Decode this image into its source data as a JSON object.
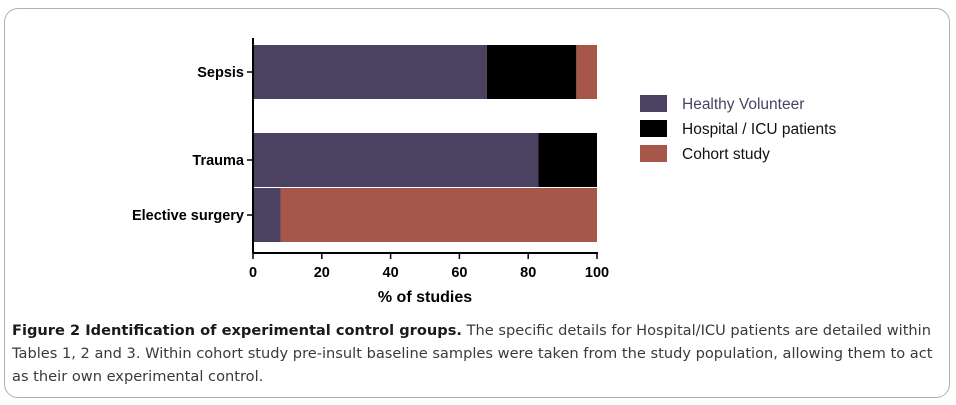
{
  "chart_data": {
    "type": "bar",
    "orientation": "horizontal",
    "stacked": true,
    "categories": [
      "Sepsis",
      "Trauma",
      "Elective surgery"
    ],
    "series": [
      {
        "name": "Healthy Volunteer",
        "color": "#4b4261",
        "values": [
          68,
          83,
          8
        ]
      },
      {
        "name": "Hospital / ICU patients",
        "color": "#000000",
        "values": [
          26,
          17,
          0
        ]
      },
      {
        "name": "Cohort study",
        "color": "#a6574a",
        "values": [
          6,
          0,
          92
        ]
      }
    ],
    "xlabel": "% of studies",
    "ylabel": "",
    "xlim": [
      0,
      100
    ],
    "xticks": [
      "0",
      "20",
      "40",
      "60",
      "80",
      "100"
    ],
    "grid": false,
    "legend_position": "right"
  },
  "caption": {
    "title": "Figure 2 Identification of experimental control groups.",
    "text": " The specific details for Hospital/ICU patients are detailed within Tables 1, 2 and 3. Within cohort study pre-insult baseline samples were taken from the study population, allowing them to act as their own experimental control."
  }
}
